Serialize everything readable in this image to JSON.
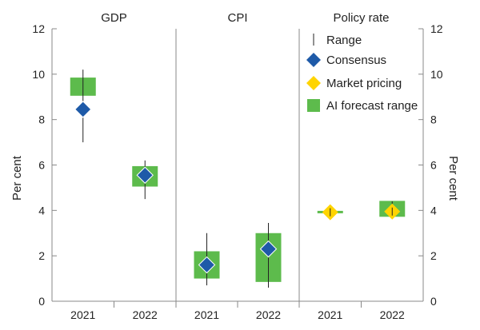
{
  "chart_data": {
    "type": "range-forecast",
    "panels": [
      {
        "title": "GDP",
        "categories": [
          "2021",
          "2022"
        ],
        "range": [
          [
            7.0,
            10.2
          ],
          [
            4.5,
            6.2
          ]
        ],
        "consensus": [
          8.45,
          5.55
        ],
        "market_pricing": [
          null,
          null
        ],
        "ai_forecast_range": [
          [
            9.05,
            9.85
          ],
          [
            5.05,
            5.95
          ]
        ]
      },
      {
        "title": "CPI",
        "categories": [
          "2021",
          "2022"
        ],
        "range": [
          [
            0.7,
            3.0
          ],
          [
            0.6,
            3.45
          ]
        ],
        "consensus": [
          1.6,
          2.3
        ],
        "market_pricing": [
          null,
          null
        ],
        "ai_forecast_range": [
          [
            1.0,
            2.2
          ],
          [
            0.85,
            3.0
          ]
        ]
      },
      {
        "title": "Policy rate",
        "categories": [
          "2021",
          "2022"
        ],
        "range": [
          [
            3.85,
            4.05
          ],
          [
            3.7,
            4.4
          ]
        ],
        "consensus": [
          null,
          null
        ],
        "market_pricing": [
          3.92,
          3.95
        ],
        "ai_forecast_range": [
          [
            3.88,
            3.98
          ],
          [
            3.72,
            4.42
          ]
        ]
      }
    ],
    "legend": [
      {
        "key": "range",
        "label": "Range"
      },
      {
        "key": "consensus",
        "label": "Consensus"
      },
      {
        "key": "market_pricing",
        "label": "Market pricing"
      },
      {
        "key": "ai_forecast_range",
        "label": "AI forecast range"
      }
    ],
    "legend_position": "top-right",
    "ylabel_left": "Per cent",
    "ylabel_right": "Per cent",
    "ylim": [
      0,
      12
    ],
    "yticks": [
      0,
      2,
      4,
      6,
      8,
      10,
      12
    ],
    "colors": {
      "consensus": "#1e5aa8",
      "market_pricing": "#ffd400",
      "ai_forecast_range": "#5dbb4c",
      "range": "#222222",
      "axis": "#888888"
    }
  }
}
